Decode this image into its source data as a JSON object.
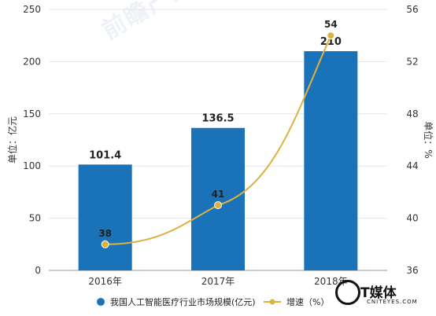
{
  "chart_data": {
    "type": "bar",
    "categories": [
      "2016年",
      "2017年",
      "2018年"
    ],
    "series": [
      {
        "name": "我国人工智能医疗行业市场规模(亿元)",
        "type": "bar",
        "axis": "left",
        "values": [
          101.4,
          136.5,
          210
        ],
        "color": "#1a72b8"
      },
      {
        "name": "增速（%）",
        "type": "line",
        "axis": "right",
        "values": [
          38,
          41,
          54
        ],
        "color": "#dcb140"
      }
    ],
    "ylabel": "单位：亿元",
    "y2label": "单位：%",
    "ylim": [
      0,
      250
    ],
    "y2lim": [
      36,
      56
    ],
    "yticks": [
      0,
      50,
      100,
      150,
      200,
      250
    ],
    "y2ticks": [
      36,
      40,
      44,
      48,
      52,
      56
    ],
    "grid": true,
    "legend": "bottom"
  },
  "watermark": "前瞻产业研究院",
  "logo": {
    "name": "T媒体",
    "domain": "CNITEYES.COM"
  }
}
